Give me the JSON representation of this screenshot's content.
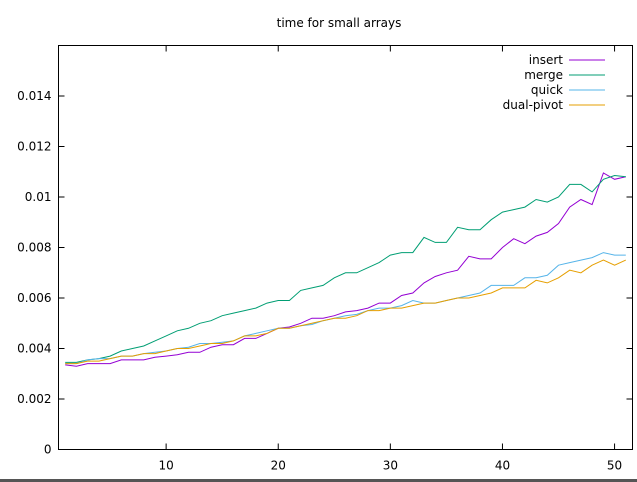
{
  "chart_data": {
    "type": "line",
    "title": "time for small arrays",
    "xlabel": "",
    "ylabel": "",
    "xlim": [
      0.4,
      51.6
    ],
    "ylim": [
      0,
      0.016
    ],
    "xticks": [
      10,
      20,
      30,
      40,
      50
    ],
    "xtick_labels": [
      "10",
      "20",
      "30",
      "40",
      "50"
    ],
    "yticks": [
      0,
      0.002,
      0.004,
      0.006,
      0.008,
      0.01,
      0.012,
      0.014
    ],
    "ytick_labels": [
      "0",
      "0.002",
      "0.004",
      "0.006",
      "0.008",
      "0.01",
      "0.012",
      "0.014"
    ],
    "grid": false,
    "legend_position": "top-right",
    "x": [
      1,
      2,
      3,
      4,
      5,
      6,
      7,
      8,
      9,
      10,
      11,
      12,
      13,
      14,
      15,
      16,
      17,
      18,
      19,
      20,
      21,
      22,
      23,
      24,
      25,
      26,
      27,
      28,
      29,
      30,
      31,
      32,
      33,
      34,
      35,
      36,
      37,
      38,
      39,
      40,
      41,
      42,
      43,
      44,
      45,
      46,
      47,
      48,
      49,
      50,
      51,
      52
    ],
    "series": [
      {
        "name": "insert",
        "color": "#9400d3",
        "values": [
          0.00335,
          0.0033,
          0.0034,
          0.0034,
          0.0034,
          0.00355,
          0.00355,
          0.00355,
          0.00365,
          0.0037,
          0.00375,
          0.00385,
          0.00385,
          0.00405,
          0.00415,
          0.00415,
          0.0044,
          0.0044,
          0.0046,
          0.0048,
          0.00485,
          0.005,
          0.0052,
          0.0052,
          0.0053,
          0.00545,
          0.0055,
          0.0056,
          0.0058,
          0.0058,
          0.0061,
          0.0062,
          0.0066,
          0.00685,
          0.007,
          0.0071,
          0.00765,
          0.00755,
          0.00755,
          0.008,
          0.00835,
          0.00815,
          0.00845,
          0.0086,
          0.00895,
          0.0096,
          0.0099,
          0.0097,
          0.01095,
          0.0107,
          0.0108,
          0.01075
        ]
      },
      {
        "name": "merge",
        "color": "#009e73",
        "values": [
          0.00345,
          0.00345,
          0.00355,
          0.0036,
          0.0037,
          0.0039,
          0.004,
          0.0041,
          0.0043,
          0.0045,
          0.0047,
          0.0048,
          0.005,
          0.0051,
          0.0053,
          0.0054,
          0.0055,
          0.0056,
          0.0058,
          0.0059,
          0.0059,
          0.0063,
          0.0064,
          0.0065,
          0.0068,
          0.007,
          0.007,
          0.0072,
          0.0074,
          0.0077,
          0.0078,
          0.0078,
          0.0084,
          0.0082,
          0.0082,
          0.0088,
          0.0087,
          0.0087,
          0.0091,
          0.0094,
          0.0095,
          0.0096,
          0.0099,
          0.0098,
          0.01,
          0.0105,
          0.0105,
          0.0102,
          0.0107,
          0.01085,
          0.0108,
          0.01075
        ]
      },
      {
        "name": "quick",
        "color": "#56b4e9",
        "values": [
          0.0034,
          0.0034,
          0.00355,
          0.0036,
          0.0036,
          0.0037,
          0.0037,
          0.0038,
          0.00385,
          0.0039,
          0.004,
          0.00405,
          0.0042,
          0.0042,
          0.00425,
          0.0043,
          0.0045,
          0.0046,
          0.0047,
          0.0048,
          0.0048,
          0.0049,
          0.00495,
          0.0051,
          0.0052,
          0.0053,
          0.00535,
          0.0055,
          0.0056,
          0.0056,
          0.0057,
          0.0059,
          0.0058,
          0.0058,
          0.0059,
          0.006,
          0.0061,
          0.0062,
          0.0065,
          0.0065,
          0.0065,
          0.0068,
          0.0068,
          0.0069,
          0.0073,
          0.0074,
          0.0075,
          0.0076,
          0.0078,
          0.0077,
          0.0077,
          0.0079
        ]
      },
      {
        "name": "dual-pivot",
        "color": "#e69f00",
        "values": [
          0.0034,
          0.0034,
          0.0035,
          0.0035,
          0.0036,
          0.0037,
          0.0037,
          0.0038,
          0.0038,
          0.0039,
          0.004,
          0.004,
          0.0041,
          0.0042,
          0.0042,
          0.0043,
          0.0045,
          0.0045,
          0.0046,
          0.0048,
          0.0048,
          0.0049,
          0.005,
          0.0051,
          0.0052,
          0.0052,
          0.0053,
          0.0055,
          0.0055,
          0.0056,
          0.0056,
          0.0057,
          0.0058,
          0.0058,
          0.0059,
          0.006,
          0.006,
          0.0061,
          0.0062,
          0.0064,
          0.0064,
          0.0064,
          0.0067,
          0.0066,
          0.0068,
          0.0071,
          0.007,
          0.0073,
          0.0075,
          0.0073,
          0.0075,
          0.0076
        ]
      }
    ]
  }
}
